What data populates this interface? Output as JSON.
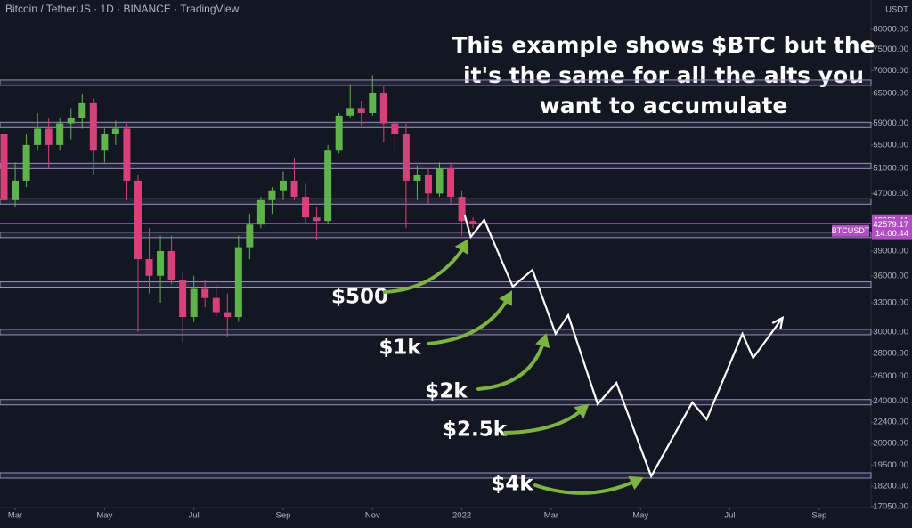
{
  "chart_data": {
    "type": "candlestick",
    "title": "Bitcoin / TetherUS · 1D · BINANCE · TradingView",
    "y_unit": "USDT",
    "log_scale": true,
    "ylim": [
      16990,
      88000
    ],
    "yticks": [
      {
        "value": 80000,
        "label": "80000.00"
      },
      {
        "value": 75000,
        "label": "75000.00"
      },
      {
        "value": 70000,
        "label": "70000.00"
      },
      {
        "value": 65000,
        "label": "65000.00"
      },
      {
        "value": 59000,
        "label": "59000.00"
      },
      {
        "value": 55000,
        "label": "55000.00"
      },
      {
        "value": 51000,
        "label": "51000.00"
      },
      {
        "value": 47000,
        "label": "47000.00"
      },
      {
        "value": 39000,
        "label": "39000.00"
      },
      {
        "value": 36000,
        "label": "36000.00"
      },
      {
        "value": 33000,
        "label": "33000.00"
      },
      {
        "value": 30000,
        "label": "30000.00"
      },
      {
        "value": 28000,
        "label": "28000.00"
      },
      {
        "value": 26000,
        "label": "26000.00"
      },
      {
        "value": 24000,
        "label": "24000.00"
      },
      {
        "value": 22400,
        "label": "22400.00"
      },
      {
        "value": 20900,
        "label": "20900.00"
      },
      {
        "value": 19500,
        "label": "19500.00"
      },
      {
        "value": 18200,
        "label": "18200.00"
      },
      {
        "value": 17050,
        "label": "17050.00"
      }
    ],
    "xlim": [
      -0.34,
      19.16
    ],
    "xticks": [
      {
        "value": 0,
        "label": "Mar"
      },
      {
        "value": 2,
        "label": "May"
      },
      {
        "value": 4,
        "label": "Jul"
      },
      {
        "value": 6,
        "label": "Sep"
      },
      {
        "value": 8,
        "label": "Nov"
      },
      {
        "value": 10,
        "label": "2022"
      },
      {
        "value": 12,
        "label": "Mar"
      },
      {
        "value": 14,
        "label": "May"
      },
      {
        "value": 16,
        "label": "Jul"
      },
      {
        "value": 18,
        "label": "Sep"
      }
    ],
    "x": [
      -0.25,
      0,
      0.25,
      0.5,
      0.75,
      1,
      1.25,
      1.5,
      1.75,
      2,
      2.25,
      2.5,
      2.75,
      3,
      3.25,
      3.5,
      3.75,
      4,
      4.25,
      4.5,
      4.75,
      5,
      5.25,
      5.5,
      5.75,
      6,
      6.25,
      6.5,
      6.75,
      7,
      7.25,
      7.5,
      7.75,
      8,
      8.25,
      8.5,
      8.75,
      9,
      9.25,
      9.5,
      9.75,
      10,
      10.25
    ],
    "open": [
      57000,
      46000,
      49000,
      55000,
      58000,
      55000,
      59000,
      60000,
      63000,
      54000,
      57000,
      58000,
      49000,
      38000,
      36000,
      39000,
      35500,
      31500,
      34500,
      33500,
      32000,
      31500,
      39500,
      42500,
      46000,
      47500,
      49000,
      46500,
      43500,
      43000,
      54000,
      60500,
      62000,
      61000,
      65000,
      59000,
      57000,
      49000,
      50000,
      47000,
      51000,
      46500,
      43000
    ],
    "high": [
      58000,
      52000,
      57000,
      61000,
      60000,
      60000,
      62000,
      64800,
      64000,
      58000,
      59500,
      59000,
      50000,
      42000,
      41000,
      41000,
      36500,
      36000,
      35500,
      35000,
      34000,
      41000,
      44000,
      46500,
      48000,
      50500,
      52800,
      48500,
      45000,
      55000,
      61000,
      67000,
      63500,
      69000,
      66500,
      60000,
      59000,
      51500,
      51000,
      52000,
      52000,
      47500,
      43500
    ],
    "low": [
      45000,
      45000,
      48000,
      54000,
      51000,
      54000,
      56000,
      58000,
      50000,
      52000,
      55000,
      46000,
      30000,
      34000,
      33000,
      35000,
      29000,
      31000,
      32500,
      31500,
      29500,
      31000,
      38000,
      42000,
      44000,
      46000,
      46000,
      42500,
      40500,
      42500,
      53500,
      60000,
      58500,
      60500,
      55500,
      53500,
      42000,
      46000,
      45500,
      46500,
      45500,
      41000,
      42000
    ],
    "close": [
      46000,
      49000,
      55000,
      58000,
      55000,
      59000,
      60000,
      63000,
      54000,
      57000,
      58000,
      49000,
      38000,
      36000,
      39000,
      35500,
      31500,
      34500,
      33500,
      32000,
      31500,
      39500,
      42500,
      46000,
      47500,
      49000,
      46500,
      43500,
      43000,
      54000,
      60500,
      62000,
      61000,
      65000,
      59000,
      57000,
      49000,
      50000,
      47000,
      51000,
      46500,
      43000,
      42579.17
    ],
    "up_color": "#5fb34b",
    "down_color": "#d6417a",
    "levels": [
      67300,
      58700,
      51400,
      45800,
      41100,
      35000,
      30000,
      23900,
      18850
    ],
    "level_color": "#9c8fc4",
    "last_price": {
      "value": 42579.17,
      "label": "42579.17"
    },
    "high_marker": {
      "value": 43051.41,
      "label": "43051.41"
    },
    "symbol": "BTCUSDT",
    "countdown": "14:00:44",
    "marker_color": "#b04fc0",
    "projection": {
      "color": "#ffffff",
      "x": [
        10.06,
        10.2,
        10.5,
        11.14,
        11.58,
        12.1,
        12.38,
        13.04,
        13.46,
        14.24,
        15.16,
        15.48,
        16.28,
        16.52,
        17.18
      ],
      "values": [
        43900,
        40850,
        43150,
        34750,
        36700,
        29830,
        31690,
        23750,
        25450,
        18800,
        23890,
        22610,
        29830,
        27590,
        31420
      ]
    },
    "annotations": {
      "color": "#7cb342",
      "labels": [
        "$500",
        "$1k",
        "$2k",
        "$2.5k",
        "$4k"
      ]
    },
    "headline": [
      "This example shows $BTC but the",
      "it's the same for all the alts you",
      "want to accumulate"
    ]
  }
}
